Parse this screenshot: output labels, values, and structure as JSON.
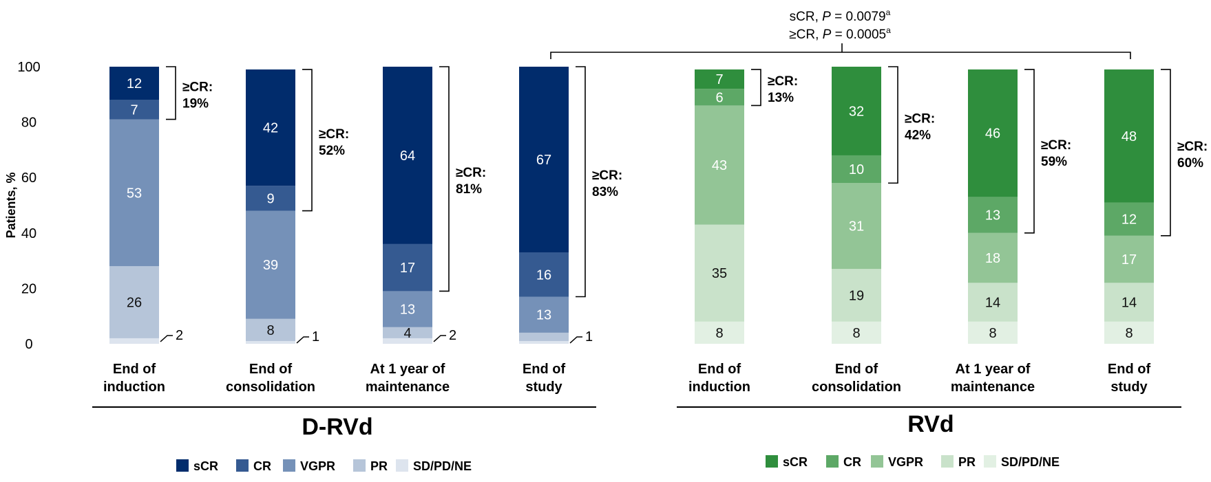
{
  "chart_data": {
    "type": "bar",
    "stacked": true,
    "ylabel": "Patients, %",
    "ylim": [
      0,
      100
    ],
    "yticks": [
      0,
      20,
      40,
      60,
      80,
      100
    ],
    "categories_text": [
      [
        "End of",
        "induction"
      ],
      [
        "End of",
        "consolidation"
      ],
      [
        "At 1 year of",
        "maintenance"
      ],
      [
        "End of",
        "study"
      ]
    ],
    "segment_order": [
      "SD/PD/NE",
      "PR",
      "VGPR",
      "CR",
      "sCR"
    ],
    "groups": [
      {
        "name": "D-RVd",
        "colors": {
          "sCR": "#012C6C",
          "CR": "#355A91",
          "VGPR": "#7591B8",
          "PR": "#B6C5D9",
          "SD/PD/NE": "#DDE4EE"
        },
        "bars": [
          {
            "values": {
              "SD/PD/NE": 2,
              "PR": 26,
              "VGPR": 53,
              "CR": 7,
              "sCR": 12
            },
            "ge_cr": "19%",
            "outside_label": "2",
            "outside_of": "SD/PD/NE"
          },
          {
            "values": {
              "SD/PD/NE": 1,
              "PR": 8,
              "VGPR": 39,
              "CR": 9,
              "sCR": 42
            },
            "ge_cr": "52%",
            "outside_label": "1",
            "outside_of": "SD/PD/NE"
          },
          {
            "values": {
              "SD/PD/NE": 2,
              "PR": 4,
              "VGPR": 13,
              "CR": 17,
              "sCR": 64
            },
            "ge_cr": "81%",
            "outside_label": "2",
            "outside_of": "SD/PD/NE"
          },
          {
            "values": {
              "SD/PD/NE": 1,
              "PR": 3,
              "VGPR": 13,
              "CR": 16,
              "sCR": 67
            },
            "ge_cr": "83%",
            "outside_label": "1",
            "outside_of": "SD/PD/NE"
          }
        ]
      },
      {
        "name": "RVd",
        "colors": {
          "sCR": "#2F8E3D",
          "CR": "#5DA866",
          "VGPR": "#93C596",
          "PR": "#C9E2CA",
          "SD/PD/NE": "#E2F0E3"
        },
        "bars": [
          {
            "values": {
              "SD/PD/NE": 8,
              "PR": 35,
              "VGPR": 43,
              "CR": 6,
              "sCR": 7
            },
            "ge_cr": "13%"
          },
          {
            "values": {
              "SD/PD/NE": 8,
              "PR": 19,
              "VGPR": 31,
              "CR": 10,
              "sCR": 32
            },
            "ge_cr": "42%"
          },
          {
            "values": {
              "SD/PD/NE": 8,
              "PR": 14,
              "VGPR": 18,
              "CR": 13,
              "sCR": 46
            },
            "ge_cr": "59%"
          },
          {
            "values": {
              "SD/PD/NE": 8,
              "PR": 14,
              "VGPR": 17,
              "CR": 12,
              "sCR": 48
            },
            "ge_cr": "60%"
          }
        ]
      }
    ],
    "ge_cr_label": "≥CR:",
    "comparison": {
      "line1_prefix": "sCR, ",
      "p_symbol": "P",
      "line1_value": " = 0.0079",
      "line2_prefix": "≥CR, ",
      "line2_value": " = 0.0005",
      "superscript": "a"
    },
    "legend_items": [
      "sCR",
      "CR",
      "VGPR",
      "PR",
      "SD/PD/NE"
    ]
  }
}
